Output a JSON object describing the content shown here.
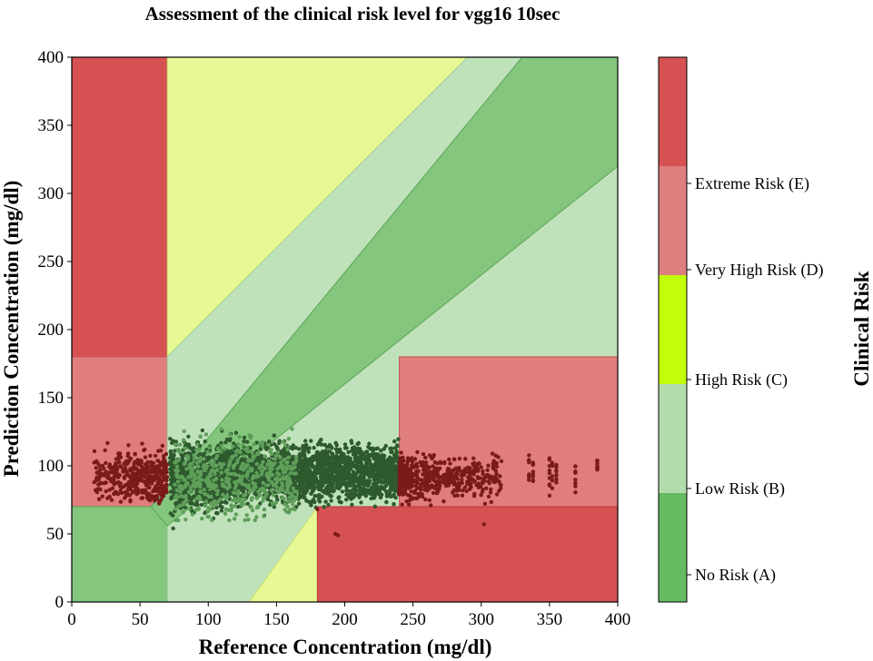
{
  "chart_data": {
    "type": "scatter",
    "title": "Assessment of the clinical risk level for vgg16 10sec",
    "xlabel": "Reference Concentration (mg/dl)",
    "ylabel": "Prediction Concentration (mg/dl)",
    "xlim": [
      0,
      400
    ],
    "ylim": [
      0,
      400
    ],
    "xticks": [
      0,
      50,
      100,
      150,
      200,
      250,
      300,
      350,
      400
    ],
    "yticks": [
      0,
      50,
      100,
      150,
      200,
      250,
      300,
      350,
      400
    ],
    "colors": {
      "zone_A": "#84c67e",
      "zone_A_light": "#a8d7a2",
      "zone_B": "#c0e2bb",
      "zone_C": "#e6f995",
      "zone_D": "#e07d7d",
      "zone_E": "#d65252",
      "point_dark": "#2e5a2e",
      "point_mid": "#5f9f5a",
      "point_red": "#7a1a1a"
    },
    "zones": [
      {
        "zone": "E",
        "polygon": [
          [
            0,
            180
          ],
          [
            70,
            180
          ],
          [
            70,
            400
          ],
          [
            0,
            400
          ]
        ]
      },
      {
        "zone": "D",
        "polygon": [
          [
            0,
            70
          ],
          [
            70,
            70
          ],
          [
            70,
            180
          ],
          [
            0,
            180
          ]
        ]
      },
      {
        "zone": "A",
        "polygon": [
          [
            0,
            0
          ],
          [
            70,
            0
          ],
          [
            70,
            70
          ],
          [
            0,
            70
          ]
        ]
      },
      {
        "zone": "C",
        "polygon": [
          [
            70,
            180
          ],
          [
            70,
            400
          ],
          [
            290,
            400
          ]
        ]
      },
      {
        "zone": "B",
        "polygon": [
          [
            70,
            56
          ],
          [
            70,
            180
          ],
          [
            290,
            400
          ],
          [
            400,
            400
          ],
          [
            400,
            180
          ],
          [
            240,
            180
          ],
          [
            240,
            70
          ],
          [
            180,
            70
          ],
          [
            180,
            0
          ],
          [
            70,
            0
          ]
        ]
      },
      {
        "zone": "C",
        "polygon": [
          [
            130,
            0
          ],
          [
            180,
            0
          ],
          [
            180,
            70
          ]
        ]
      },
      {
        "zone": "A",
        "polygon": [
          [
            58,
            70
          ],
          [
            70,
            84
          ],
          [
            330,
            400
          ],
          [
            400,
            400
          ],
          [
            400,
            320
          ],
          [
            70,
            56
          ]
        ]
      },
      {
        "zone": "D",
        "polygon": [
          [
            240,
            70
          ],
          [
            400,
            70
          ],
          [
            400,
            180
          ],
          [
            240,
            180
          ]
        ]
      },
      {
        "zone": "E",
        "polygon": [
          [
            180,
            0
          ],
          [
            400,
            0
          ],
          [
            400,
            70
          ],
          [
            180,
            70
          ]
        ]
      }
    ],
    "scatter_summary": {
      "n_points_approx": 6000,
      "x_range": [
        10,
        385
      ],
      "y_range": [
        48,
        128
      ],
      "main_cluster_x": [
        70,
        240
      ],
      "main_cluster_y_center": 95
    },
    "colorbar": {
      "title": "Clinical Risk",
      "labels": [
        "No Risk (A)",
        "Low Risk (B)",
        "High Risk (C)",
        "Very High Risk (D)",
        "Extreme Risk (E)"
      ],
      "segment_colors": [
        "#65ba62",
        "#b3dcad",
        "#c2fd0a",
        "#df7e7e",
        "#d65252"
      ]
    }
  }
}
